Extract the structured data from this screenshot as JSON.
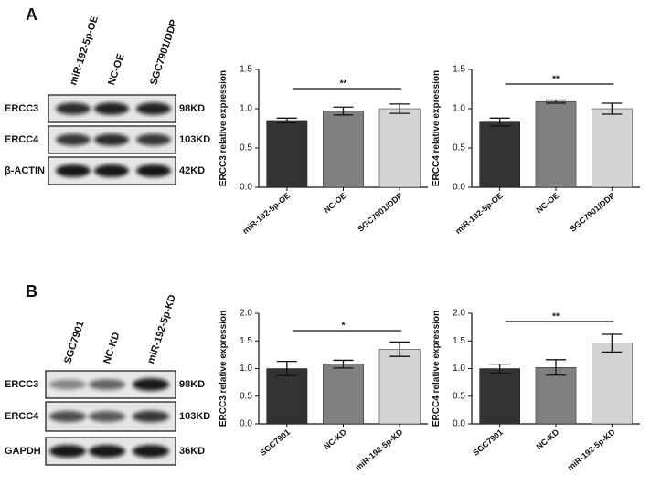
{
  "chart_data": [
    {
      "type": "bar",
      "y_label": "ERCC3 relative expression",
      "categories": [
        "miR-192-5p-OE",
        "NC-OE",
        "SGC7901/DDP"
      ],
      "values": [
        0.85,
        0.97,
        1.0
      ],
      "errors": [
        0.03,
        0.05,
        0.06
      ],
      "colors": [
        "#333333",
        "#808080",
        "#d3d3d3"
      ],
      "ylim": [
        0,
        1.5
      ],
      "yticks": [
        {
          "value": 0,
          "label": "0.0"
        },
        {
          "value": 0.5,
          "label": "0.5"
        },
        {
          "value": 1,
          "label": "1.0"
        },
        {
          "value": 1.5,
          "label": "1.5"
        }
      ],
      "annotation": "**"
    },
    {
      "type": "bar",
      "y_label": "ERCC4 relative expression",
      "categories": [
        "miR-192-5p-OE",
        "NC-OE",
        "SGC7901/DDP"
      ],
      "values": [
        0.83,
        1.09,
        1.0
      ],
      "errors": [
        0.05,
        0.02,
        0.07
      ],
      "colors": [
        "#333333",
        "#808080",
        "#d3d3d3"
      ],
      "ylim": [
        0,
        1.5
      ],
      "yticks": [
        {
          "value": 0,
          "label": "0.0"
        },
        {
          "value": 0.5,
          "label": "0.5"
        },
        {
          "value": 1,
          "label": "1.0"
        },
        {
          "value": 1.5,
          "label": "1.5"
        }
      ],
      "annotation": "**"
    },
    {
      "type": "bar",
      "y_label": "ERCC3 relative expression",
      "categories": [
        "SGC7901",
        "NC-KD",
        "miR-192-5p-KD"
      ],
      "values": [
        1.0,
        1.08,
        1.35
      ],
      "errors": [
        0.13,
        0.07,
        0.13
      ],
      "colors": [
        "#333333",
        "#808080",
        "#d3d3d3"
      ],
      "ylim": [
        0,
        2
      ],
      "yticks": [
        {
          "value": 0,
          "label": "0.0"
        },
        {
          "value": 0.5,
          "label": "0.5"
        },
        {
          "value": 1,
          "label": "1.0"
        },
        {
          "value": 1.5,
          "label": "1.5"
        },
        {
          "value": 2,
          "label": "2.0"
        }
      ],
      "annotation": "*"
    },
    {
      "type": "bar",
      "y_label": "ERCC4 relative expression",
      "categories": [
        "SGC7901",
        "NC-KD",
        "miR-192-5p-KD"
      ],
      "values": [
        1.0,
        1.02,
        1.46
      ],
      "errors": [
        0.08,
        0.14,
        0.16
      ],
      "colors": [
        "#333333",
        "#808080",
        "#d3d3d3"
      ],
      "ylim": [
        0,
        2
      ],
      "yticks": [
        {
          "value": 0,
          "label": "0.0"
        },
        {
          "value": 0.5,
          "label": "0.5"
        },
        {
          "value": 1,
          "label": "1.0"
        },
        {
          "value": 1.5,
          "label": "1.5"
        },
        {
          "value": 2,
          "label": "2.0"
        }
      ],
      "annotation": "**"
    }
  ],
  "blots": [
    {
      "panel": "A",
      "lanes": [
        "miR-192-5p-OE",
        "NC-OE",
        "SGC7901/DDP"
      ],
      "rows": [
        {
          "protein": "ERCC3",
          "size": "98KD"
        },
        {
          "protein": "ERCC4",
          "size": "103KD"
        },
        {
          "protein": "β-ACTIN",
          "size": "42KD"
        }
      ]
    },
    {
      "panel": "B",
      "lanes": [
        "SGC7901",
        "NC-KD",
        "miR-192-5p-KD"
      ],
      "rows": [
        {
          "protein": "ERCC3",
          "size": "98KD"
        },
        {
          "protein": "ERCC4",
          "size": "103KD"
        },
        {
          "protein": "GAPDH",
          "size": "36KD"
        }
      ]
    }
  ]
}
